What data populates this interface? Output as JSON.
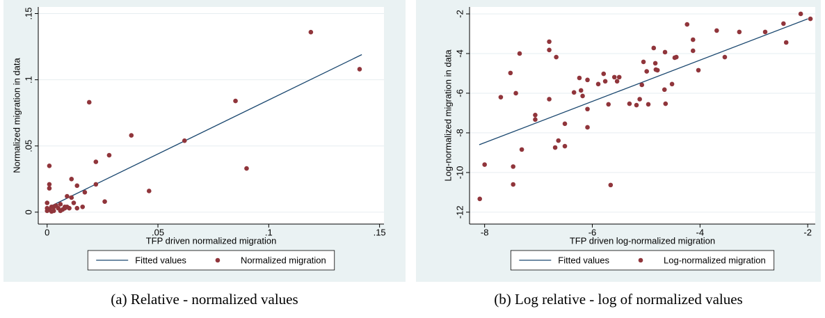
{
  "chart_data": [
    {
      "type": "scatter",
      "caption": "(a) Relative - normalized values",
      "xlabel": "TFP driven normalized migration",
      "ylabel": "Normalized migration in data",
      "xlim": [
        -0.004,
        0.152
      ],
      "ylim": [
        -0.009,
        0.155
      ],
      "xticks": [
        0,
        {
          "value": 0.05,
          "label": ".05"
        },
        {
          "value": 0.1,
          "label": ".1"
        },
        {
          "value": 0.15,
          "label": ".15"
        }
      ],
      "yticks": [
        0,
        {
          "value": 0.05,
          "label": ".05"
        },
        {
          "value": 0.1,
          "label": ".1"
        },
        {
          "value": 0.15,
          "label": ".15"
        }
      ],
      "grid": true,
      "legend": "bottom",
      "series": [
        {
          "name": "Fitted values",
          "type": "line",
          "color": "#1a476f",
          "x": [
            0.001,
            0.142
          ],
          "values": [
            0.004,
            0.119
          ]
        },
        {
          "name": "Normalized migration",
          "type": "scatter",
          "color": "#90353b",
          "x": [
            0.119,
            0.141,
            0.085,
            0.09,
            0.062,
            0.046,
            0.038,
            0.028,
            0.022,
            0.022,
            0.019,
            0.026,
            0.017,
            0.016,
            0.0135,
            0.011,
            0.011,
            0.012,
            0.009,
            0.009,
            0.0135,
            0.001,
            0.001,
            0.001,
            0,
            0,
            0.001,
            0.002,
            0.003,
            0.003,
            0.004,
            0.005,
            0.006,
            0.007,
            0.008,
            0.008,
            0.01,
            0,
            0.002,
            0.006
          ],
          "values": [
            0.136,
            0.108,
            0.084,
            0.033,
            0.054,
            0.016,
            0.058,
            0.043,
            0.038,
            0.021,
            0.083,
            0.008,
            0.015,
            0.004,
            0.02,
            0.025,
            0.011,
            0.007,
            0.012,
            0.004,
            0.003,
            0.035,
            0.021,
            0.018,
            0.007,
            0.003,
            0.002,
            0.004,
            0.001,
            0.004,
            0.005,
            0.003,
            0.006,
            0.002,
            0.003,
            0.004,
            0.003,
            0.001,
            0.0005,
            0.001
          ]
        }
      ]
    },
    {
      "type": "scatter",
      "caption": "(b) Log relative - log of normalized values",
      "xlabel": "TFP driven log-normalized migration",
      "ylabel": "Log-normalized migration in data",
      "xlim": [
        -8.28,
        -1.86
      ],
      "ylim": [
        -12.6,
        -1.65
      ],
      "xticks": [
        -8,
        -6,
        -4,
        -2
      ],
      "yticks": [
        -12,
        -10,
        -8,
        -6,
        -4,
        -2
      ],
      "grid": true,
      "legend": "bottom",
      "series": [
        {
          "name": "Fitted values",
          "type": "line",
          "color": "#1a476f",
          "x": [
            -8.1,
            -2
          ],
          "values": [
            -8.6,
            -2.25
          ]
        },
        {
          "name": "Log-normalized migration",
          "type": "scatter",
          "color": "#90353b",
          "x": [
            -8.09,
            -8.0,
            -7.7,
            -7.47,
            -7.47,
            -7.35,
            -7.52,
            -7.42,
            -7.31,
            -7.06,
            -7.06,
            -6.8,
            -6.8,
            -6.8,
            -6.67,
            -6.69,
            -6.63,
            -6.51,
            -6.51,
            -6.34,
            -6.24,
            -6.21,
            -6.18,
            -6.09,
            -6.09,
            -6.09,
            -5.89,
            -5.79,
            -5.76,
            -5.7,
            -5.66,
            -5.59,
            -5.54,
            -5.5,
            -5.31,
            -5.18,
            -5.12,
            -5.08,
            -5.05,
            -4.99,
            -4.96,
            -4.86,
            -4.83,
            -4.82,
            -4.79,
            -4.66,
            -4.65,
            -4.64,
            -4.52,
            -4.47,
            -4.44,
            -4.24,
            -4.13,
            -4.13,
            -4.03,
            -3.69,
            -3.54,
            -3.27,
            -2.79,
            -2.45,
            -2.4,
            -2.13,
            -1.95
          ],
          "values": [
            -11.33,
            -9.6,
            -6.2,
            -9.7,
            -10.6,
            -4.0,
            -4.98,
            -6.0,
            -8.84,
            -7.1,
            -7.33,
            -3.82,
            -3.4,
            -6.3,
            -4.18,
            -8.74,
            -8.39,
            -7.54,
            -8.67,
            -5.96,
            -5.23,
            -5.86,
            -6.14,
            -5.33,
            -6.8,
            -7.72,
            -5.54,
            -5.02,
            -5.4,
            -6.56,
            -10.63,
            -5.19,
            -5.4,
            -5.19,
            -6.53,
            -6.6,
            -6.3,
            -5.58,
            -4.42,
            -4.9,
            -6.56,
            -3.72,
            -4.49,
            -4.81,
            -4.84,
            -5.82,
            -3.93,
            -6.53,
            -5.54,
            -4.21,
            -4.18,
            -2.53,
            -3.3,
            -3.86,
            -4.84,
            -2.84,
            -4.18,
            -2.91,
            -2.91,
            -2.49,
            -3.44,
            -2.0,
            -2.25
          ]
        }
      ]
    }
  ]
}
